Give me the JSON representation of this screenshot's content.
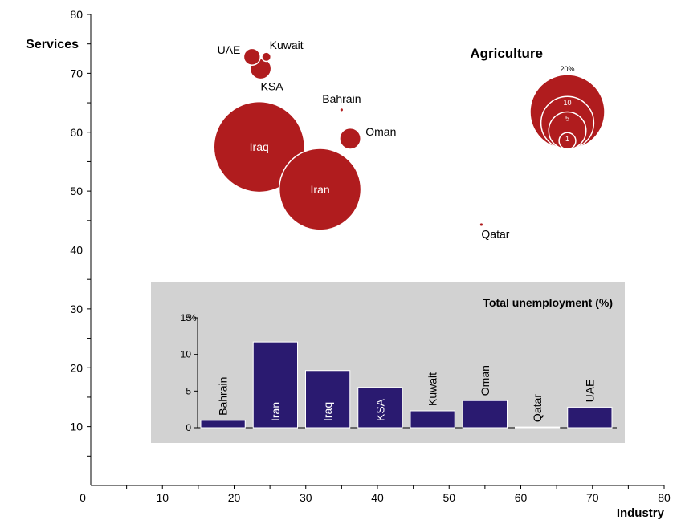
{
  "chart_data": [
    {
      "type": "scatter",
      "variant": "bubble",
      "xlabel": "Industry",
      "ylabel": "Services",
      "xlim": [
        0,
        80
      ],
      "ylim": [
        0,
        80
      ],
      "x_ticks": [
        0,
        10,
        20,
        30,
        40,
        50,
        60,
        70,
        80
      ],
      "y_ticks": [
        0,
        10,
        20,
        30,
        40,
        50,
        60,
        70,
        80
      ],
      "bubble_color": "#b01c1e",
      "size_label": "Agriculture",
      "size_legend": [
        {
          "value": 20,
          "label": "20%"
        },
        {
          "value": 10,
          "label": "10"
        },
        {
          "value": 5,
          "label": "5"
        },
        {
          "value": 1,
          "label": "1"
        }
      ],
      "points": [
        {
          "label": "UAE",
          "x": 22.5,
          "y": 72.8,
          "size": 1.0,
          "label_pos": "left"
        },
        {
          "label": "Kuwait",
          "x": 24.5,
          "y": 72.8,
          "size": 0.3,
          "label_pos": "right"
        },
        {
          "label": "KSA",
          "x": 23.7,
          "y": 70.8,
          "size": 1.6,
          "label_pos": "below-right"
        },
        {
          "label": "Bahrain",
          "x": 35.0,
          "y": 63.8,
          "size": 0.05,
          "label_pos": "above"
        },
        {
          "label": "Oman",
          "x": 36.2,
          "y": 58.9,
          "size": 1.6,
          "label_pos": "right"
        },
        {
          "label": "Iraq",
          "x": 23.5,
          "y": 57.5,
          "size": 29.5,
          "label_pos": "inside"
        },
        {
          "label": "Iran",
          "x": 32.0,
          "y": 50.3,
          "size": 24.0,
          "label_pos": "inside"
        },
        {
          "label": "Qatar",
          "x": 54.5,
          "y": 44.3,
          "size": 0.05,
          "label_pos": "below-right"
        }
      ]
    },
    {
      "type": "bar",
      "title": "Total unemployment (%)",
      "y_unit": "%",
      "ylim": [
        0,
        15
      ],
      "y_ticks": [
        0,
        5,
        10,
        15
      ],
      "categories": [
        "Bahrain",
        "Iran",
        "Iraq",
        "KSA",
        "Kuwait",
        "Oman",
        "Qatar",
        "UAE"
      ],
      "values": [
        1.0,
        11.7,
        7.8,
        5.5,
        2.3,
        3.7,
        0.1,
        2.8
      ],
      "bar_color": "#2a1a70",
      "background_color": "#d2d2d2"
    }
  ]
}
